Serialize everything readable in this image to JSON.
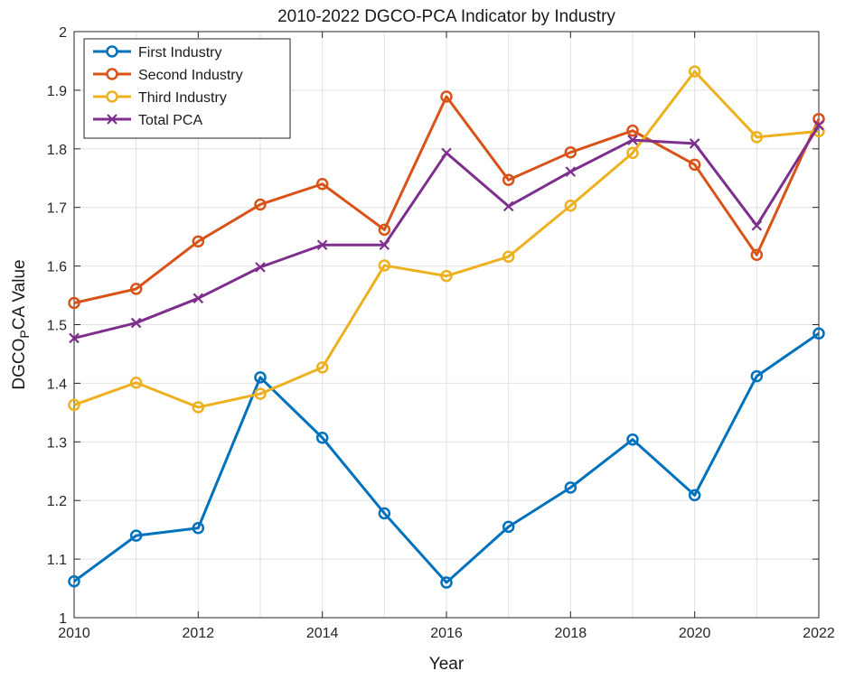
{
  "chart_data": {
    "type": "line",
    "title": "2010-2022 DGCO-PCA Indicator by Industry",
    "xlabel": "Year",
    "ylabel_main": "DGCO",
    "ylabel_sub": "P",
    "ylabel_rest": "CA Value",
    "xlim": [
      2010,
      2022
    ],
    "ylim": [
      1,
      2
    ],
    "xticks": [
      2010,
      2012,
      2014,
      2016,
      2018,
      2020,
      2022
    ],
    "yticks": [
      1,
      1.1,
      1.2,
      1.3,
      1.4,
      1.5,
      1.6,
      1.7,
      1.8,
      1.9,
      2
    ],
    "xtick_labels": [
      "2010",
      "2012",
      "2014",
      "2016",
      "2018",
      "2020",
      "2022"
    ],
    "ytick_labels": [
      "1",
      "1.1",
      "1.2",
      "1.3",
      "1.4",
      "1.5",
      "1.6",
      "1.7",
      "1.8",
      "1.9",
      "2"
    ],
    "grid": true,
    "legend_position": "top-left",
    "x": [
      2010,
      2011,
      2012,
      2013,
      2014,
      2015,
      2016,
      2017,
      2018,
      2019,
      2020,
      2021,
      2022
    ],
    "series": [
      {
        "name": "First Industry",
        "color": "#0072BD",
        "marker": "circle",
        "values": [
          1.062,
          1.14,
          1.153,
          1.41,
          1.307,
          1.178,
          1.06,
          1.155,
          1.222,
          1.304,
          1.209,
          1.412,
          1.485
        ]
      },
      {
        "name": "Second Industry",
        "color": "#D95319",
        "marker": "circle",
        "values": [
          1.537,
          1.561,
          1.642,
          1.705,
          1.74,
          1.662,
          1.889,
          1.747,
          1.794,
          1.831,
          1.773,
          1.619,
          1.851
        ]
      },
      {
        "name": "Third Industry",
        "color": "#EDB120",
        "marker": "circle",
        "values": [
          1.363,
          1.401,
          1.359,
          1.382,
          1.427,
          1.601,
          1.583,
          1.616,
          1.703,
          1.793,
          1.932,
          1.82,
          1.83
        ]
      },
      {
        "name": "Total PCA",
        "color": "#7E2F8E",
        "marker": "x",
        "values": [
          1.477,
          1.503,
          1.545,
          1.598,
          1.636,
          1.636,
          1.793,
          1.702,
          1.761,
          1.815,
          1.809,
          1.669,
          1.84
        ]
      }
    ]
  }
}
